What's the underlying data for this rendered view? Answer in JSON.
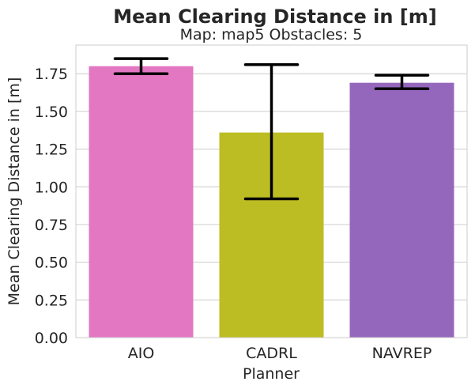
{
  "chart_data": {
    "type": "bar",
    "title": "Mean Clearing Distance in [m]",
    "subtitle": "Map: map5 Obstacles: 5",
    "xlabel": "Planner",
    "ylabel": "Mean Clearing Distance in [m]",
    "categories": [
      "AIO",
      "CADRL",
      "NAVREP"
    ],
    "values": [
      1.8,
      1.36,
      1.69
    ],
    "error_low": [
      1.75,
      0.92,
      1.65
    ],
    "error_high": [
      1.85,
      1.81,
      1.74
    ],
    "colors": [
      "#e377c2",
      "#bcbd22",
      "#9467bd"
    ],
    "ylim": [
      0,
      1.94
    ],
    "yticks": [
      "0.00",
      "0.25",
      "0.50",
      "0.75",
      "1.00",
      "1.25",
      "1.50",
      "1.75"
    ],
    "grid": true
  }
}
